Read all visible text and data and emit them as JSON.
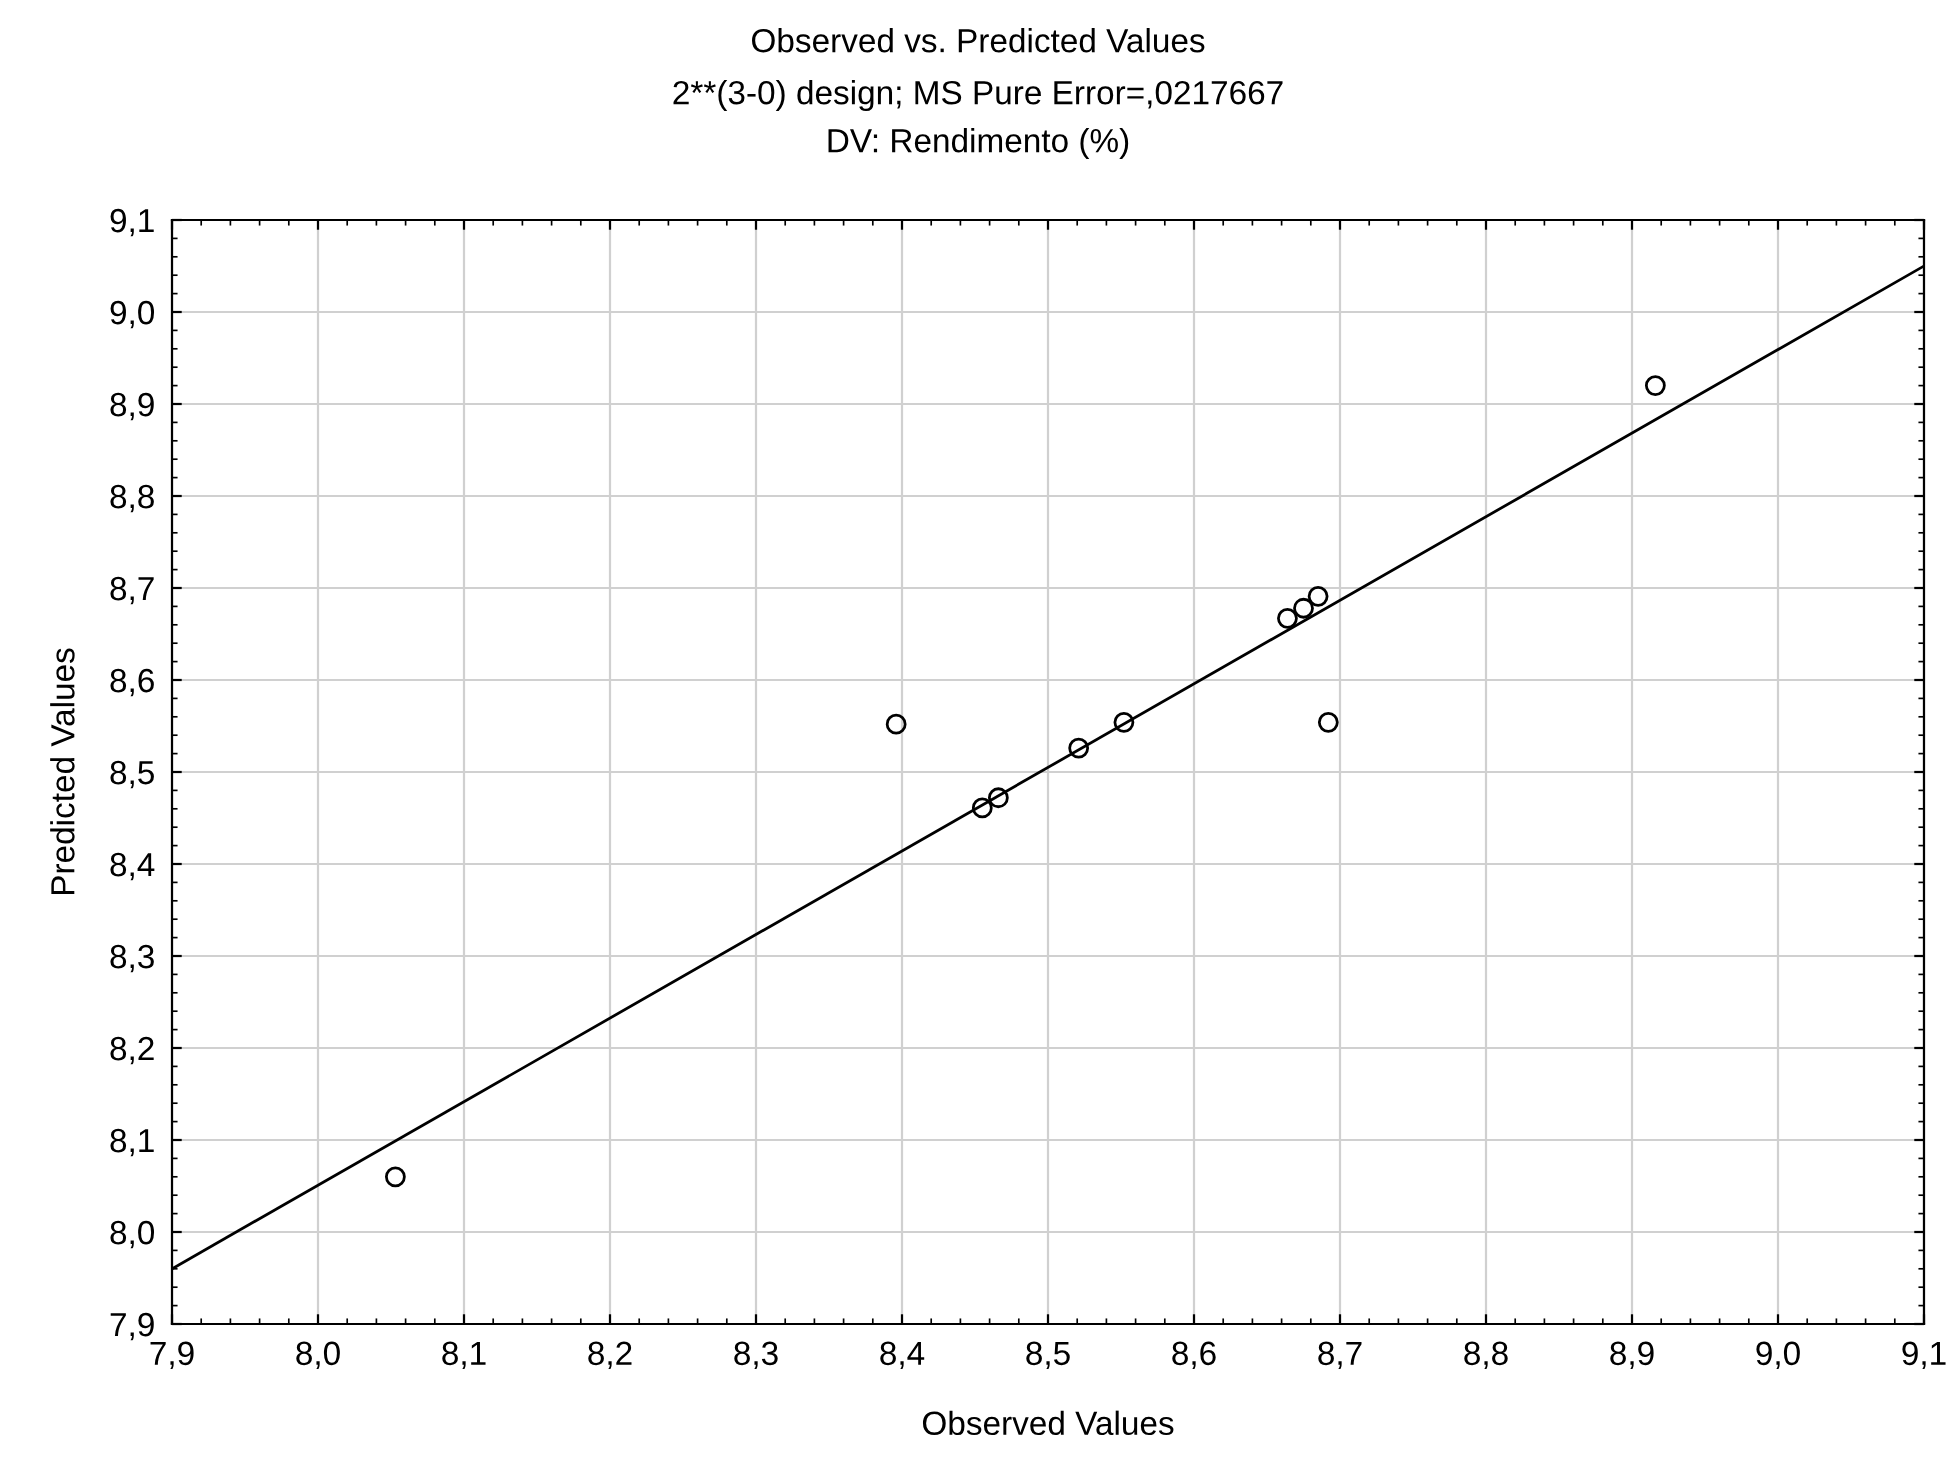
{
  "chart_data": {
    "type": "scatter",
    "title": "Observed vs. Predicted Values",
    "subtitle": "2**(3-0) design; MS Pure Error=,0217667\nDV: Rendimento (%)",
    "xlabel": "Observed Values",
    "ylabel": "Predicted Values",
    "grid": true,
    "series": [
      {
        "marker": "circle",
        "color": "#000000",
        "x": [
          8.053,
          8.396,
          8.455,
          8.466,
          8.521,
          8.552,
          8.664,
          8.675,
          8.685,
          8.692,
          8.916
        ],
        "values": [
          8.06,
          8.552,
          8.461,
          8.472,
          8.526,
          8.554,
          8.667,
          8.678,
          8.691,
          8.554,
          8.92
        ]
      },
      {
        "type": "line",
        "marker": "none",
        "color": "#000000",
        "x": [
          7.9,
          9.1
        ],
        "values": [
          7.96,
          9.05
        ]
      }
    ],
    "xlim": [
      7.9,
      9.1
    ],
    "ylim": [
      7.9,
      9.1
    ],
    "xticks": [
      {
        "value": 7.9,
        "label": "7,9"
      },
      {
        "value": 8.0,
        "label": "8,0"
      },
      {
        "value": 8.1,
        "label": "8,1"
      },
      {
        "value": 8.2,
        "label": "8,2"
      },
      {
        "value": 8.3,
        "label": "8,3"
      },
      {
        "value": 8.4,
        "label": "8,4"
      },
      {
        "value": 8.5,
        "label": "8,5"
      },
      {
        "value": 8.6,
        "label": "8,6"
      },
      {
        "value": 8.7,
        "label": "8,7"
      },
      {
        "value": 8.8,
        "label": "8,8"
      },
      {
        "value": 8.9,
        "label": "8,9"
      },
      {
        "value": 9.0,
        "label": "9,0"
      },
      {
        "value": 9.1,
        "label": "9,1"
      }
    ],
    "yticks": [
      {
        "value": 7.9,
        "label": "7,9"
      },
      {
        "value": 8.0,
        "label": "8,0"
      },
      {
        "value": 8.1,
        "label": "8,1"
      },
      {
        "value": 8.2,
        "label": "8,2"
      },
      {
        "value": 8.3,
        "label": "8,3"
      },
      {
        "value": 8.4,
        "label": "8,4"
      },
      {
        "value": 8.5,
        "label": "8,5"
      },
      {
        "value": 8.6,
        "label": "8,6"
      },
      {
        "value": 8.7,
        "label": "8,7"
      },
      {
        "value": 8.8,
        "label": "8,8"
      },
      {
        "value": 8.9,
        "label": "8,9"
      },
      {
        "value": 9.0,
        "label": "9,0"
      },
      {
        "value": 9.1,
        "label": "9,1"
      }
    ]
  }
}
